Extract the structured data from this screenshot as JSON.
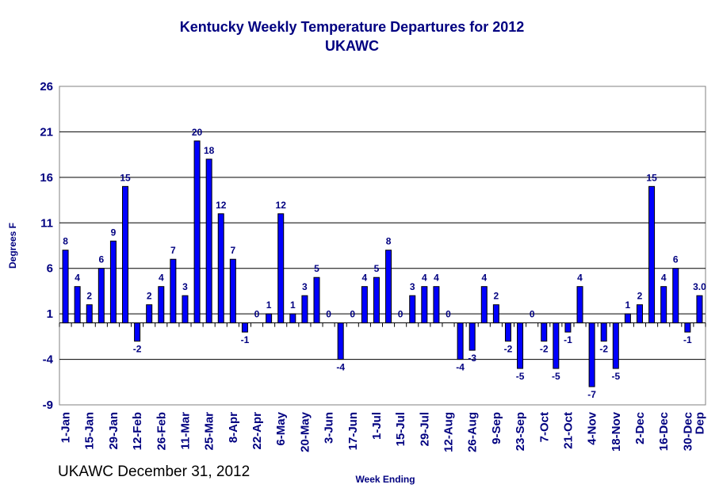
{
  "chart_data": {
    "type": "bar",
    "title": "Kentucky Weekly Temperature Departures for 2012",
    "subtitle": "UKAWC",
    "xlabel": "Week Ending",
    "ylabel": "Degrees F",
    "ylim": [
      -9,
      26
    ],
    "yticks": [
      -9,
      -4,
      1,
      6,
      11,
      16,
      21,
      26
    ],
    "grid": true,
    "legend": "none",
    "bar_color": "#0000ff",
    "values": [
      8,
      4,
      2,
      6,
      9,
      15,
      -2,
      2,
      4,
      7,
      3,
      20,
      18,
      12,
      7,
      -1,
      0,
      1,
      12,
      1,
      3,
      5,
      0,
      -4,
      0,
      4,
      5,
      8,
      0,
      3,
      4,
      4,
      0,
      -4,
      -3,
      4,
      2,
      -2,
      -5,
      0,
      -2,
      -5,
      -1,
      4,
      -7,
      -2,
      -5,
      1,
      2,
      15,
      4,
      6,
      -1,
      3.0
    ],
    "value_labels": [
      "8",
      "4",
      "2",
      "6",
      "9",
      "15",
      "-2",
      "2",
      "4",
      "7",
      "3",
      "20",
      "18",
      "12",
      "7",
      "-1",
      "0",
      "1",
      "12",
      "1",
      "3",
      "5",
      "0",
      "-4",
      "0",
      "4",
      "5",
      "8",
      "0",
      "3",
      "4",
      "4",
      "0",
      "-4",
      "-3",
      "4",
      "2",
      "-2",
      "-5",
      "0",
      "-2",
      "-5",
      "-1",
      "4",
      "-7",
      "-2",
      "-5",
      "1",
      "2",
      "15",
      "4",
      "6",
      "-1",
      "3.0"
    ],
    "show_value_labels": [
      true,
      true,
      true,
      true,
      true,
      true,
      true,
      true,
      true,
      true,
      true,
      true,
      true,
      true,
      true,
      true,
      true,
      true,
      true,
      true,
      true,
      true,
      true,
      true,
      true,
      true,
      true,
      true,
      true,
      true,
      true,
      true,
      true,
      true,
      true,
      true,
      true,
      true,
      true,
      true,
      true,
      true,
      true,
      true,
      true,
      true,
      true,
      false,
      true,
      true,
      true,
      true,
      true,
      true
    ],
    "extra_value_labels": [
      "1"
    ],
    "x_tick_labels": [
      "1-Jan",
      "15-Jan",
      "29-Jan",
      "12-Feb",
      "26-Feb",
      "11-Mar",
      "25-Mar",
      "8-Apr",
      "22-Apr",
      "6-May",
      "20-May",
      "3-Jun",
      "17-Jun",
      "1-Jul",
      "15-Jul",
      "29-Jul",
      "12-Aug",
      "26-Aug",
      "9-Sep",
      "23-Sep",
      "7-Oct",
      "21-Oct",
      "4-Nov",
      "18-Nov",
      "2-Dec",
      "16-Dec",
      "30-Dec",
      "Dep"
    ]
  },
  "footer": "UKAWC December 31, 2012"
}
